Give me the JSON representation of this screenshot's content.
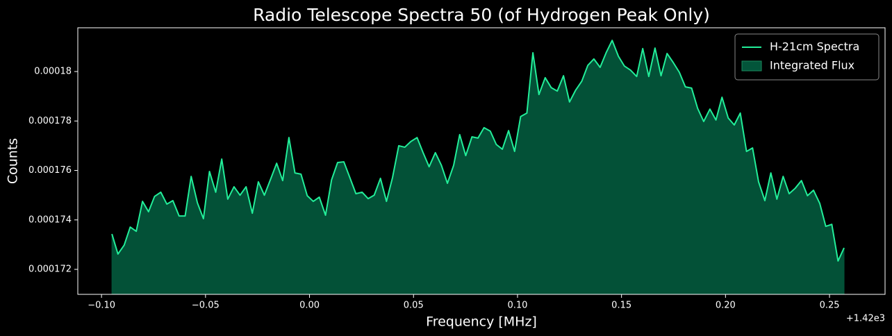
{
  "chart_data": {
    "type": "line",
    "title": "Radio Telescope Spectra 50 (of Hydrogen Peak Only)",
    "x_label": "Frequency [MHz]",
    "y_label": "Counts",
    "x_offset_label": "+1.42e3",
    "x": [
      1419.905,
      1419.9079,
      1419.9109,
      1419.9138,
      1419.9167,
      1419.9197,
      1419.9226,
      1419.9255,
      1419.9285,
      1419.9314,
      1419.9343,
      1419.9373,
      1419.9402,
      1419.9431,
      1419.9461,
      1419.949,
      1419.9519,
      1419.9549,
      1419.9578,
      1419.9607,
      1419.9637,
      1419.9666,
      1419.9695,
      1419.9725,
      1419.9754,
      1419.9783,
      1419.9813,
      1419.9842,
      1419.9871,
      1419.9901,
      1419.993,
      1419.9959,
      1419.9989,
      1420.0018,
      1420.0047,
      1420.0077,
      1420.0106,
      1420.0135,
      1420.0165,
      1420.0194,
      1420.0223,
      1420.0253,
      1420.0282,
      1420.0311,
      1420.0341,
      1420.037,
      1420.0399,
      1420.0429,
      1420.0458,
      1420.0487,
      1420.0517,
      1420.0546,
      1420.0575,
      1420.0605,
      1420.0634,
      1420.0663,
      1420.0693,
      1420.0722,
      1420.0751,
      1420.0781,
      1420.081,
      1420.0839,
      1420.0869,
      1420.0898,
      1420.0927,
      1420.0957,
      1420.0986,
      1420.1015,
      1420.1045,
      1420.1074,
      1420.1103,
      1420.1133,
      1420.1162,
      1420.1191,
      1420.1221,
      1420.125,
      1420.1279,
      1420.1309,
      1420.1338,
      1420.1367,
      1420.1397,
      1420.1426,
      1420.1455,
      1420.1485,
      1420.1514,
      1420.1543,
      1420.1573,
      1420.1602,
      1420.1631,
      1420.1661,
      1420.169,
      1420.1719,
      1420.1749,
      1420.1778,
      1420.1807,
      1420.1837,
      1420.1866,
      1420.1895,
      1420.1925,
      1420.1954,
      1420.1983,
      1420.2013,
      1420.2042,
      1420.2071,
      1420.2101,
      1420.213,
      1420.2159,
      1420.2189,
      1420.2218,
      1420.2247,
      1420.2277,
      1420.2306,
      1420.2335,
      1420.2365,
      1420.2394,
      1420.2423,
      1420.2453,
      1420.2482,
      1420.2511,
      1420.2541,
      1420.257
    ],
    "series": [
      {
        "name": "H-21cm Spectra",
        "color": "#22ee99",
        "values": [
          0.00017343,
          0.00017262,
          0.00017298,
          0.00017371,
          0.00017354,
          0.00017475,
          0.00017433,
          0.00017495,
          0.00017512,
          0.00017464,
          0.00017478,
          0.00017416,
          0.00017416,
          0.00017576,
          0.00017469,
          0.00017405,
          0.00017596,
          0.00017512,
          0.00017646,
          0.00017484,
          0.00017534,
          0.000175,
          0.00017534,
          0.00017427,
          0.00017554,
          0.000175,
          0.00017565,
          0.00017629,
          0.00017559,
          0.00017733,
          0.0001759,
          0.00017585,
          0.00017498,
          0.00017475,
          0.00017492,
          0.00017419,
          0.00017562,
          0.00017632,
          0.00017635,
          0.00017571,
          0.00017506,
          0.00017512,
          0.00017486,
          0.000175,
          0.00017568,
          0.00017475,
          0.00017571,
          0.000177,
          0.00017694,
          0.00017717,
          0.00017733,
          0.00017672,
          0.00017615,
          0.00017672,
          0.00017621,
          0.00017548,
          0.00017621,
          0.00017745,
          0.0001766,
          0.00017736,
          0.00017731,
          0.00017773,
          0.00017759,
          0.00017705,
          0.00017686,
          0.00017761,
          0.00017677,
          0.00017818,
          0.00017832,
          0.00018076,
          0.00017907,
          0.00017975,
          0.00017935,
          0.00017921,
          0.00017983,
          0.00017877,
          0.00017924,
          0.00017961,
          0.00018025,
          0.00018051,
          0.00018017,
          0.00018076,
          0.00018126,
          0.00018062,
          0.00018022,
          0.00018006,
          0.0001798,
          0.00018093,
          0.0001798,
          0.00018095,
          0.00017983,
          0.00018073,
          0.00018036,
          0.00017997,
          0.00017938,
          0.00017933,
          0.00017851,
          0.00017798,
          0.00017848,
          0.00017804,
          0.00017896,
          0.00017812,
          0.00017784,
          0.00017832,
          0.00017677,
          0.00017691,
          0.00017554,
          0.00017478,
          0.0001759,
          0.00017484,
          0.00017576,
          0.00017506,
          0.00017528,
          0.00017559,
          0.00017498,
          0.0001752,
          0.00017467,
          0.00017374,
          0.00017382,
          0.00017234,
          0.00017287
        ]
      }
    ],
    "fill": {
      "name": "Integrated Flux",
      "color": "#03553a"
    },
    "xlim": [
      1419.8886,
      1420.2767
    ],
    "xticks": [
      {
        "value": 1419.9,
        "label": "−0.10"
      },
      {
        "value": 1419.95,
        "label": "−0.05"
      },
      {
        "value": 1420.0,
        "label": "0.00"
      },
      {
        "value": 1420.05,
        "label": "0.05"
      },
      {
        "value": 1420.1,
        "label": "0.10"
      },
      {
        "value": 1420.15,
        "label": "0.15"
      },
      {
        "value": 1420.2,
        "label": "0.20"
      },
      {
        "value": 1420.25,
        "label": "0.25"
      }
    ],
    "ylim": [
      0.00017099,
      0.00018177
    ],
    "yticks": [
      0.000172,
      0.000174,
      0.000176,
      0.000178,
      0.00018
    ],
    "legend": "upper right"
  }
}
